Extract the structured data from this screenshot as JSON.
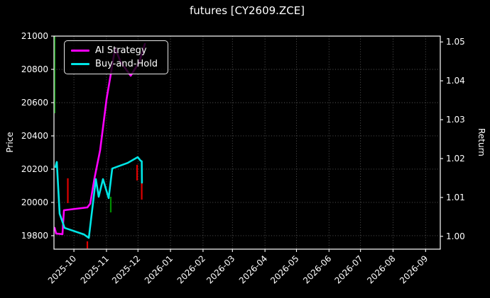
{
  "window": {
    "title": "futures [CY2609.ZCE]"
  },
  "chart_data": {
    "type": "line",
    "title": "futures [CY2609.ZCE]",
    "ylabel_left": "Price",
    "ylabel_right": "Return",
    "background": "#000000",
    "text_color": "#ffffff",
    "grid": {
      "on": true,
      "style": "dotted",
      "color": "#5c5c5c"
    },
    "x_axis": {
      "epoch": "2025-09-01",
      "range_days": [
        11,
        379
      ],
      "ticks": [
        {
          "day": 30,
          "label": "2025-10"
        },
        {
          "day": 61,
          "label": "2025-11"
        },
        {
          "day": 91,
          "label": "2025-12"
        },
        {
          "day": 122,
          "label": "2026-01"
        },
        {
          "day": 153,
          "label": "2026-02"
        },
        {
          "day": 181,
          "label": "2026-03"
        },
        {
          "day": 212,
          "label": "2026-04"
        },
        {
          "day": 242,
          "label": "2026-05"
        },
        {
          "day": 273,
          "label": "2026-06"
        },
        {
          "day": 303,
          "label": "2026-07"
        },
        {
          "day": 334,
          "label": "2026-08"
        },
        {
          "day": 365,
          "label": "2026-09"
        }
      ]
    },
    "y_left": {
      "label": "Price",
      "range": [
        19719,
        21000
      ],
      "ticks": [
        {
          "v": 21000,
          "label": "21000"
        },
        {
          "v": 20800,
          "label": "20800"
        },
        {
          "v": 20600,
          "label": "20600"
        },
        {
          "v": 20400,
          "label": "20400"
        },
        {
          "v": 20200,
          "label": "20200"
        },
        {
          "v": 20000,
          "label": "20000"
        },
        {
          "v": 19800,
          "label": "19800"
        }
      ]
    },
    "y_right": {
      "label": "Return",
      "range": [
        0.9967,
        1.0515
      ],
      "ticks": [
        {
          "v": 1.05,
          "label": "1.05"
        },
        {
          "v": 1.04,
          "label": "1.04"
        },
        {
          "v": 1.03,
          "label": "1.03"
        },
        {
          "v": 1.02,
          "label": "1.02"
        },
        {
          "v": 1.01,
          "label": "1.01"
        },
        {
          "v": 1.0,
          "label": "1.00"
        }
      ]
    },
    "legend": {
      "position": "upper-left",
      "entries": [
        {
          "label": "AI Strategy",
          "color": "#ff00ff"
        },
        {
          "label": "Buy-and-Hold",
          "color": "#00e6e6"
        }
      ]
    },
    "series": [
      {
        "name": "AI Strategy",
        "color": "#ff00ff",
        "width": 2.6,
        "points": [
          [
            11.7,
            19847
          ],
          [
            13.0,
            19813
          ],
          [
            19.1,
            19809
          ],
          [
            20.5,
            19953
          ],
          [
            42.8,
            19970
          ],
          [
            45.5,
            19992
          ],
          [
            49.6,
            20145
          ],
          [
            55.0,
            20315
          ],
          [
            61.1,
            20621
          ],
          [
            65.1,
            20770
          ],
          [
            69.2,
            20928
          ],
          [
            74.6,
            20843
          ],
          [
            84.1,
            20762
          ],
          [
            92.2,
            20843
          ],
          [
            97.6,
            20953
          ]
        ]
      },
      {
        "name": "Buy-and-Hold",
        "color": "#00e6e6",
        "width": 2.6,
        "points": [
          [
            12.4,
            20213
          ],
          [
            13.7,
            20243
          ],
          [
            16.4,
            19932
          ],
          [
            21.1,
            19847
          ],
          [
            39.4,
            19808
          ],
          [
            44.2,
            19787
          ],
          [
            50.9,
            20140
          ],
          [
            53.6,
            20034
          ],
          [
            57.7,
            20140
          ],
          [
            63.1,
            20026
          ],
          [
            66.5,
            20204
          ],
          [
            81.4,
            20238
          ],
          [
            90.8,
            20272
          ],
          [
            93.5,
            20251
          ],
          [
            94.6,
            20247
          ],
          [
            94.8,
            20119
          ]
        ]
      }
    ],
    "trade_markers": [
      {
        "day": 11.7,
        "from": 21000,
        "to": 20536,
        "color": "#008f00"
      },
      {
        "day": 24.2,
        "from": 20145,
        "to": 19996,
        "color": "#e00000"
      },
      {
        "day": 42.8,
        "from": 19766,
        "to": 19723,
        "color": "#e00000"
      },
      {
        "day": 65.1,
        "from": 20034,
        "to": 19940,
        "color": "#008f00"
      },
      {
        "day": 90.2,
        "from": 20226,
        "to": 20132,
        "color": "#e00000"
      },
      {
        "day": 94.6,
        "from": 20119,
        "to": 20017,
        "color": "#e00000"
      }
    ]
  }
}
